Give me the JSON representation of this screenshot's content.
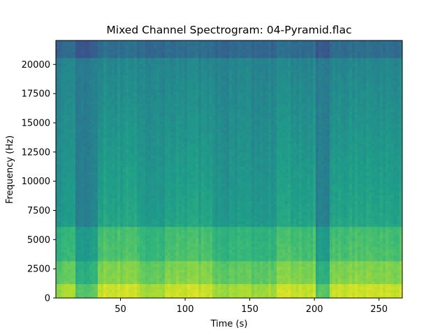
{
  "chart_data": {
    "type": "heatmap",
    "title": "Mixed Channel Spectrogram: 04-Pyramid.flac",
    "xlabel": "Time (s)",
    "ylabel": "Frequency (Hz)",
    "xlim": [
      0,
      268
    ],
    "ylim": [
      0,
      22050
    ],
    "x_ticks": [
      50,
      100,
      150,
      200,
      250
    ],
    "x_tick_labels": [
      "50",
      "100",
      "150",
      "200",
      "250"
    ],
    "y_ticks": [
      0,
      2500,
      5000,
      7500,
      10000,
      12500,
      15000,
      17500,
      20000
    ],
    "y_tick_labels": [
      "0",
      "2500",
      "5000",
      "7500",
      "10000",
      "12500",
      "15000",
      "17500",
      "20000"
    ],
    "colormap": "viridis",
    "grid": false,
    "legend": "none",
    "segments": [
      {
        "t_start": 0,
        "t_end": 15,
        "level": "medium"
      },
      {
        "t_start": 15,
        "t_end": 33,
        "level": "quiet"
      },
      {
        "t_start": 33,
        "t_end": 65,
        "level": "loud"
      },
      {
        "t_start": 65,
        "t_end": 85,
        "level": "medium"
      },
      {
        "t_start": 85,
        "t_end": 120,
        "level": "loud"
      },
      {
        "t_start": 120,
        "t_end": 170,
        "level": "medium"
      },
      {
        "t_start": 170,
        "t_end": 200,
        "level": "loud"
      },
      {
        "t_start": 200,
        "t_end": 212,
        "level": "quiet"
      },
      {
        "t_start": 212,
        "t_end": 268,
        "level": "loud"
      }
    ]
  },
  "colors": {
    "dark_top_band": "#35608d",
    "quiet_region": "#2a8a88",
    "mid_teal": "#22a884",
    "bright_low_freq": "#b5de2b",
    "peak_yellow": "#d2e21b"
  }
}
